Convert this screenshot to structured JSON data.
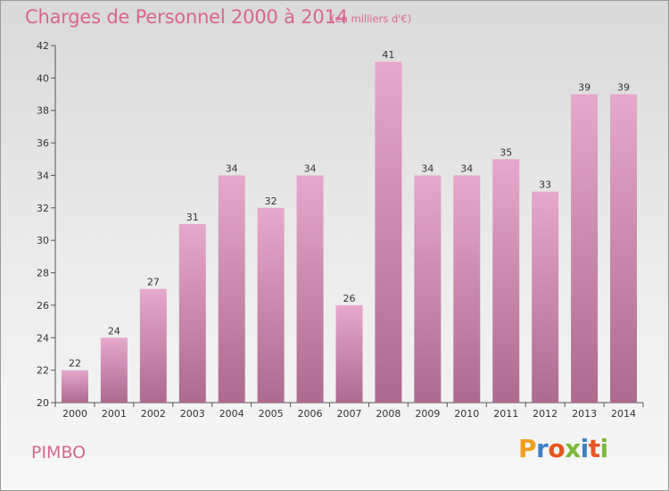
{
  "header": {
    "title": "Charges de Personnel 2000 à 2014",
    "subtitle": "(en milliers d'€)"
  },
  "footer": {
    "commune": "PIMBO",
    "logo_text": "Proxiti"
  },
  "colors": {
    "bar_top": "#e6a8cc",
    "bar_bottom": "#ad6a8f",
    "title": "#d86590",
    "axis": "#555555"
  },
  "chart_data": {
    "type": "bar",
    "title": "Charges de Personnel 2000 à 2014",
    "subtitle": "(en milliers d'€)",
    "categories": [
      "2000",
      "2001",
      "2002",
      "2003",
      "2004",
      "2005",
      "2006",
      "2007",
      "2008",
      "2009",
      "2010",
      "2011",
      "2012",
      "2013",
      "2014"
    ],
    "values": [
      22,
      24,
      27,
      31,
      34,
      32,
      34,
      26,
      41,
      34,
      34,
      35,
      33,
      39,
      39
    ],
    "ylim": [
      20,
      42
    ],
    "yticks": [
      20,
      22,
      24,
      26,
      28,
      30,
      32,
      34,
      36,
      38,
      40,
      42
    ],
    "grid": false,
    "legend": "none"
  }
}
